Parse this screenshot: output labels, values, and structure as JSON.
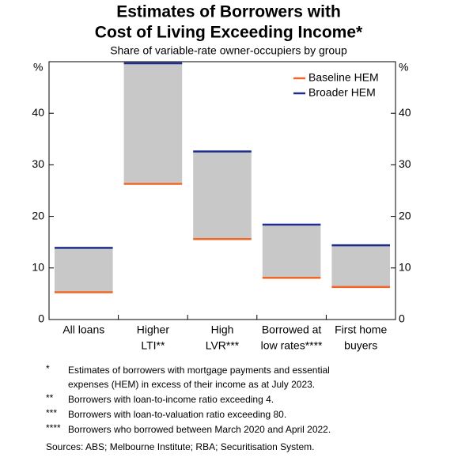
{
  "chart_data": {
    "type": "floating_range",
    "title": [
      "Estimates of Borrowers with",
      "Cost of Living Exceeding Income*"
    ],
    "subtitle": "Share of variable-rate owner-occupiers by group",
    "y_unit": "%",
    "categories": [
      [
        "All loans"
      ],
      [
        "Higher",
        "LTI**"
      ],
      [
        "High",
        "LVR***"
      ],
      [
        "Borrowed at",
        "low rates****"
      ],
      [
        "First home",
        "buyers"
      ]
    ],
    "series": [
      {
        "name": "Baseline HEM",
        "color": "#f26522",
        "values": [
          5.3,
          26.3,
          15.6,
          8.1,
          6.3
        ]
      },
      {
        "name": "Broader HEM",
        "color": "#1f2d8c",
        "values": [
          13.9,
          49.7,
          32.6,
          18.4,
          14.4
        ]
      }
    ],
    "range_color": "#c8c8c8",
    "ylim": [
      0,
      50
    ],
    "yticks": [
      0,
      10,
      20,
      30,
      40
    ],
    "y2lim": [
      0,
      50
    ],
    "y2ticks": [
      0,
      10,
      20,
      30,
      40
    ],
    "legend": "top-right",
    "notes": [
      {
        "marker": "*",
        "text": [
          "Estimates of borrowers with mortgage payments and essential",
          "expenses (HEM) in excess of their income as at July 2023."
        ]
      },
      {
        "marker": "**",
        "text": [
          "Borrowers with loan-to-income ratio exceeding 4."
        ]
      },
      {
        "marker": "***",
        "text": [
          "Borrowers with loan-to-valuation ratio exceeding 80."
        ]
      },
      {
        "marker": "****",
        "text": [
          "Borrowers who borrowed between March 2020 and April 2022."
        ]
      }
    ],
    "sources": "Sources: ABS; Melbourne Institute; RBA; Securitisation System."
  }
}
